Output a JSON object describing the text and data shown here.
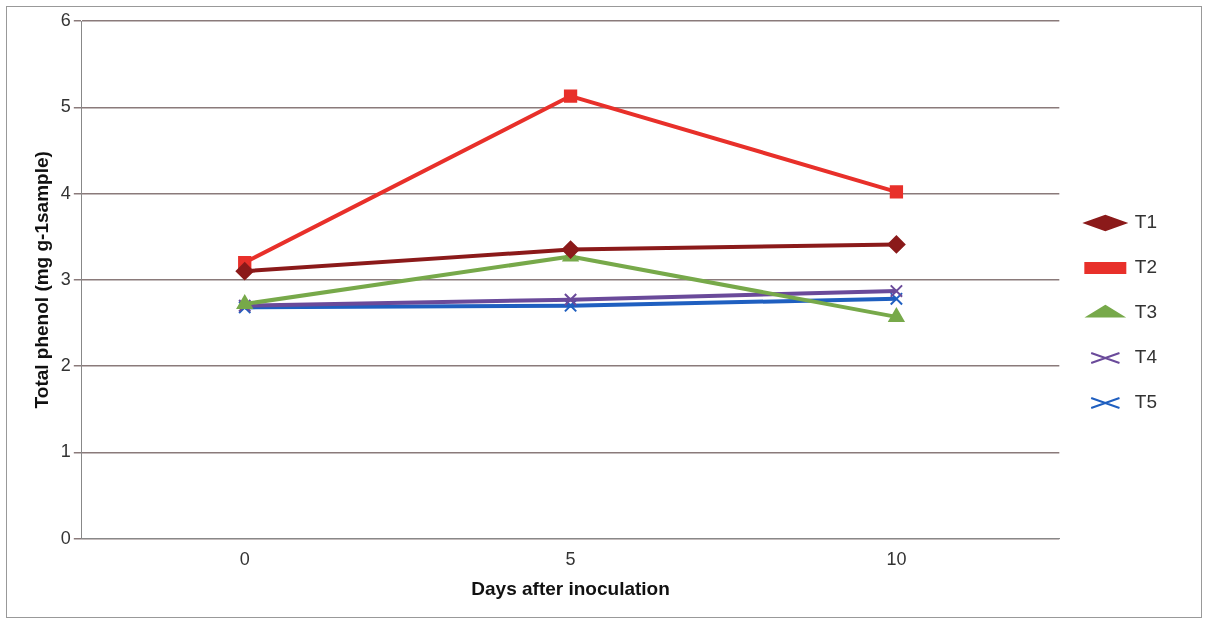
{
  "chart_data": {
    "type": "line",
    "xlabel": "Days after inoculation",
    "ylabel": "Total phenol (mg g-1sample)",
    "categories": [
      "0",
      "5",
      "10"
    ],
    "ylim": [
      0,
      6
    ],
    "yticks": [
      0,
      1,
      2,
      3,
      4,
      5,
      6
    ],
    "grid": "y",
    "legend": "right",
    "series": [
      {
        "name": "T1",
        "color": "#8b1a1a",
        "marker": "diamond",
        "values": [
          3.1,
          3.35,
          3.41
        ]
      },
      {
        "name": "T2",
        "color": "#e8302a",
        "marker": "square",
        "values": [
          3.2,
          5.13,
          4.02
        ]
      },
      {
        "name": "T3",
        "color": "#77a94a",
        "marker": "triangle",
        "values": [
          2.72,
          3.27,
          2.57
        ]
      },
      {
        "name": "T4",
        "color": "#6a4a9a",
        "marker": "cross",
        "values": [
          2.7,
          2.77,
          2.87
        ]
      },
      {
        "name": "T5",
        "color": "#1f5fc0",
        "marker": "cross",
        "values": [
          2.68,
          2.7,
          2.78
        ]
      }
    ]
  }
}
